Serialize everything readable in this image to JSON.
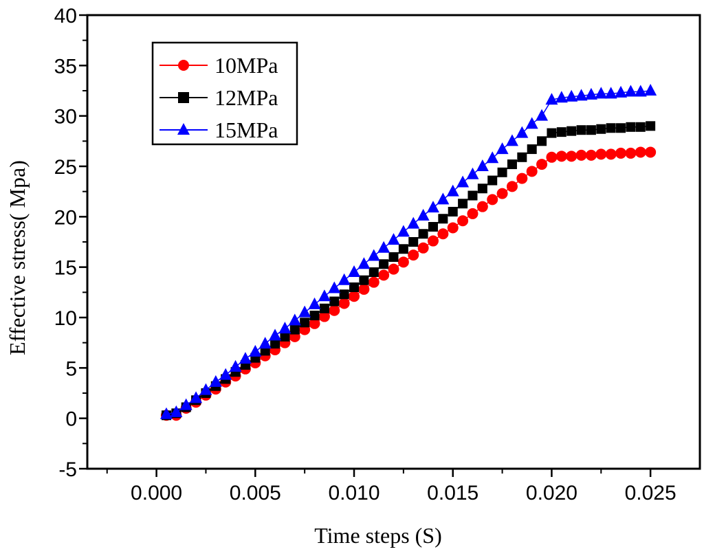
{
  "chart_data": {
    "type": "scatter",
    "title": "",
    "xlabel": "Time steps (S)",
    "ylabel": "Effective stress( Mpa)",
    "xlim": [
      -0.0035,
      0.0275
    ],
    "ylim": [
      -5,
      40
    ],
    "xticks": [
      "0.000",
      "0.005",
      "0.010",
      "0.015",
      "0.020",
      "0.025"
    ],
    "yticks": [
      "-5",
      "0",
      "5",
      "10",
      "15",
      "20",
      "25",
      "30",
      "35",
      "40"
    ],
    "legend_position": "top-left",
    "x": [
      0.0005,
      0.001,
      0.0015,
      0.002,
      0.0025,
      0.003,
      0.0035,
      0.004,
      0.0045,
      0.005,
      0.0055,
      0.006,
      0.0065,
      0.007,
      0.0075,
      0.008,
      0.0085,
      0.009,
      0.0095,
      0.01,
      0.0105,
      0.011,
      0.0115,
      0.012,
      0.0125,
      0.013,
      0.0135,
      0.014,
      0.0145,
      0.015,
      0.0155,
      0.016,
      0.0165,
      0.017,
      0.0175,
      0.018,
      0.0185,
      0.019,
      0.0195,
      0.02,
      0.0205,
      0.021,
      0.0215,
      0.022,
      0.0225,
      0.023,
      0.0235,
      0.024,
      0.0245,
      0.025
    ],
    "series": [
      {
        "name": "10MPa",
        "color": "#ff0000",
        "marker": "circle",
        "values": [
          0.3,
          0.3,
          1.0,
          1.6,
          2.3,
          2.9,
          3.6,
          4.2,
          4.9,
          5.5,
          6.2,
          6.8,
          7.5,
          8.1,
          8.8,
          9.4,
          10.1,
          10.7,
          11.4,
          12.1,
          12.8,
          13.5,
          14.2,
          14.8,
          15.5,
          16.2,
          16.9,
          17.6,
          18.3,
          18.9,
          19.6,
          20.3,
          21.0,
          21.7,
          22.3,
          23.0,
          23.8,
          24.5,
          25.2,
          25.9,
          26.0,
          26.0,
          26.1,
          26.1,
          26.2,
          26.2,
          26.3,
          26.3,
          26.4,
          26.4
        ]
      },
      {
        "name": "12MPa",
        "color": "#000000",
        "marker": "square",
        "values": [
          0.3,
          0.5,
          1.1,
          1.8,
          2.5,
          3.2,
          3.9,
          4.6,
          5.3,
          6.0,
          6.7,
          7.4,
          8.1,
          8.8,
          9.5,
          10.2,
          10.9,
          11.6,
          12.3,
          13.0,
          13.7,
          14.5,
          15.3,
          16.0,
          16.8,
          17.5,
          18.3,
          19.0,
          19.8,
          20.5,
          21.3,
          22.1,
          22.8,
          23.6,
          24.4,
          25.2,
          25.9,
          26.7,
          27.5,
          28.3,
          28.4,
          28.5,
          28.6,
          28.6,
          28.7,
          28.8,
          28.8,
          28.9,
          28.9,
          29.0
        ]
      },
      {
        "name": "15MPa",
        "color": "#0000ff",
        "marker": "triangle",
        "values": [
          0.4,
          0.6,
          1.3,
          2.0,
          2.8,
          3.6,
          4.3,
          5.1,
          5.9,
          6.6,
          7.4,
          8.2,
          8.9,
          9.7,
          10.5,
          11.3,
          12.1,
          12.9,
          13.7,
          14.5,
          15.3,
          16.1,
          16.9,
          17.7,
          18.5,
          19.3,
          20.1,
          20.9,
          21.7,
          22.5,
          23.4,
          24.2,
          25.0,
          25.8,
          26.7,
          27.5,
          28.3,
          29.2,
          30.0,
          31.6,
          31.8,
          31.9,
          32.0,
          32.1,
          32.2,
          32.2,
          32.3,
          32.4,
          32.4,
          32.5
        ]
      }
    ]
  }
}
